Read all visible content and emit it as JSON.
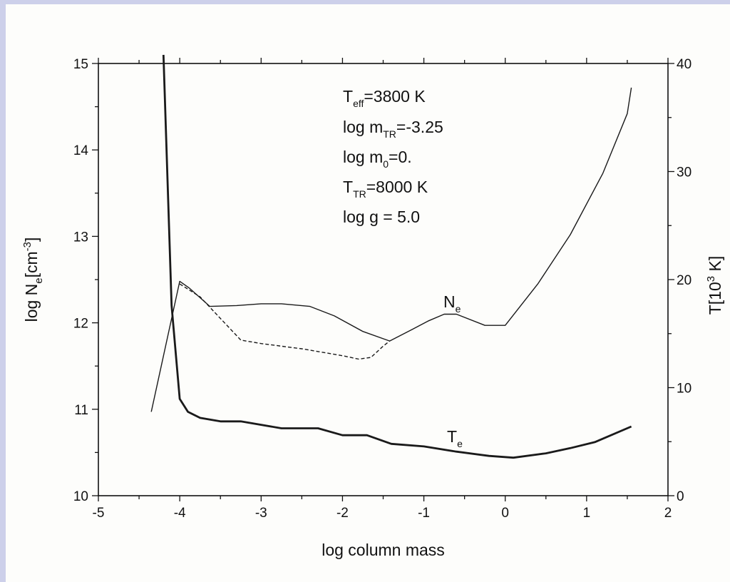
{
  "page": {
    "background": "#cdd0ea",
    "paper": "#fdfdfb"
  },
  "chart_data": {
    "type": "line",
    "title": "",
    "xlabel": "log column mass",
    "ylabel_left": {
      "main": "log N",
      "sub": "e",
      "after": "[cm",
      "sup": "-3",
      "end": "]"
    },
    "ylabel_right": {
      "main": "T[10",
      "sup": "3",
      "end": " K]"
    },
    "xlim": [
      -5,
      2
    ],
    "ylim_left": [
      10,
      15
    ],
    "ylim_right": [
      0,
      40
    ],
    "x_ticks": [
      -5,
      -4,
      -3,
      -2,
      -1,
      0,
      1,
      2
    ],
    "y_left_ticks": [
      10,
      11,
      12,
      13,
      14,
      15
    ],
    "y_right_ticks": [
      0,
      10,
      20,
      30,
      40
    ],
    "grid": false,
    "annotations": [
      {
        "main": "T",
        "sub": "eff",
        "rest": "=3800 K"
      },
      {
        "main": "log m",
        "sub": "TR",
        "rest": "=-3.25"
      },
      {
        "main": "log m",
        "sub": "0",
        "rest": "=0."
      },
      {
        "main": "T",
        "sub": "TR",
        "rest": "=8000 K"
      },
      {
        "main": "log g = 5.0",
        "sub": "",
        "rest": ""
      }
    ],
    "curve_labels": {
      "ne": {
        "main": "N",
        "sub": "e"
      },
      "te": {
        "main": "T",
        "sub": "e"
      }
    },
    "series": [
      {
        "id": "ne",
        "axis": "left",
        "style": "solid",
        "points": [
          [
            -4.35,
            10.97
          ],
          [
            -4.0,
            12.48
          ],
          [
            -3.88,
            12.4
          ],
          [
            -3.63,
            12.19
          ],
          [
            -3.3,
            12.2
          ],
          [
            -3.0,
            12.22
          ],
          [
            -2.75,
            12.22
          ],
          [
            -2.4,
            12.19
          ],
          [
            -2.1,
            12.08
          ],
          [
            -1.75,
            11.9
          ],
          [
            -1.42,
            11.79
          ],
          [
            -1.15,
            11.92
          ],
          [
            -0.95,
            12.02
          ],
          [
            -0.75,
            12.1
          ],
          [
            -0.6,
            12.1
          ],
          [
            -0.25,
            11.97
          ],
          [
            0.0,
            11.97
          ],
          [
            0.4,
            12.45
          ],
          [
            0.8,
            13.02
          ],
          [
            1.2,
            13.73
          ],
          [
            1.5,
            14.42
          ],
          [
            1.55,
            14.72
          ]
        ]
      },
      {
        "id": "ne-dashed",
        "axis": "left",
        "style": "dashed",
        "points": [
          [
            -4.0,
            12.45
          ],
          [
            -3.75,
            12.3
          ],
          [
            -3.5,
            12.05
          ],
          [
            -3.25,
            11.8
          ],
          [
            -3.0,
            11.76
          ],
          [
            -2.5,
            11.7
          ],
          [
            -2.0,
            11.62
          ],
          [
            -1.8,
            11.58
          ],
          [
            -1.65,
            11.6
          ],
          [
            -1.5,
            11.73
          ],
          [
            -1.42,
            11.79
          ]
        ]
      },
      {
        "id": "te",
        "axis": "left",
        "style": "bold",
        "points": [
          [
            -4.2,
            15.1
          ],
          [
            -4.1,
            12.2
          ],
          [
            -4.0,
            11.12
          ],
          [
            -3.9,
            10.97
          ],
          [
            -3.75,
            10.9
          ],
          [
            -3.5,
            10.86
          ],
          [
            -3.25,
            10.86
          ],
          [
            -3.0,
            10.82
          ],
          [
            -2.75,
            10.78
          ],
          [
            -2.3,
            10.78
          ],
          [
            -2.0,
            10.7
          ],
          [
            -1.7,
            10.7
          ],
          [
            -1.4,
            10.6
          ],
          [
            -1.0,
            10.57
          ],
          [
            -0.6,
            10.51
          ],
          [
            -0.2,
            10.46
          ],
          [
            0.1,
            10.44
          ],
          [
            0.5,
            10.49
          ],
          [
            0.8,
            10.55
          ],
          [
            1.1,
            10.62
          ],
          [
            1.55,
            10.8
          ]
        ]
      }
    ]
  }
}
